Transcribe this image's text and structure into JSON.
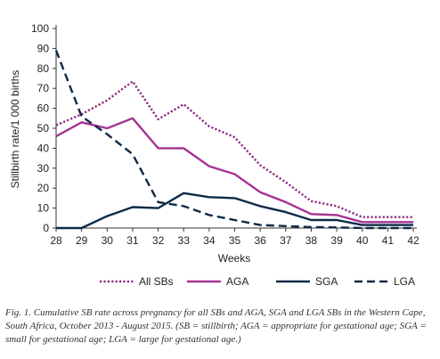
{
  "chart_data": {
    "type": "line",
    "title": "",
    "xlabel": "Weeks",
    "ylabel": "Stillbirth rate/1 000 births",
    "x": [
      "28",
      "29",
      "30",
      "31",
      "32",
      "33",
      "34",
      "35",
      "36",
      "37",
      "38",
      "39",
      "40",
      "41",
      "42"
    ],
    "ylim": [
      0,
      100
    ],
    "yticks": [
      "0",
      "10",
      "20",
      "30",
      "40",
      "50",
      "60",
      "70",
      "80",
      "90",
      "100"
    ],
    "grid": false,
    "legend": "bottom",
    "series": [
      {
        "name": "All SBs",
        "style": "dotted",
        "color": "#8e2a7e",
        "values": [
          51.5,
          57,
          64,
          73.5,
          54.5,
          62,
          51,
          45.5,
          31.5,
          23,
          13.5,
          11,
          5.5,
          5.5,
          5.5
        ]
      },
      {
        "name": "AGA",
        "style": "solid",
        "color": "#a53293",
        "values": [
          46,
          53,
          50,
          55,
          40,
          40,
          31,
          27,
          18,
          13,
          7,
          6.5,
          3,
          3,
          3
        ]
      },
      {
        "name": "SGA",
        "style": "solid",
        "color": "#0e2a47",
        "values": [
          0,
          0,
          6,
          10.5,
          10,
          17.5,
          15.5,
          15,
          11,
          8,
          4,
          4,
          1.5,
          1.5,
          1.5
        ]
      },
      {
        "name": "LGA",
        "style": "dashed",
        "color": "#0e2a47",
        "values": [
          89,
          56,
          47,
          37,
          13,
          11,
          6.5,
          4,
          1.5,
          1,
          0.5,
          0.3,
          0,
          0,
          0
        ]
      }
    ]
  },
  "caption": "Fig. 1. Cumulative SB rate across pregnancy for all SBs and AGA, SGA and LGA SBs in the Western Cape, South Africa, October 2013 - August 2015. (SB = stillbirth; AGA = appropriate for gestational age; SGA = small for gestational age; LGA = large for gestational age.)"
}
